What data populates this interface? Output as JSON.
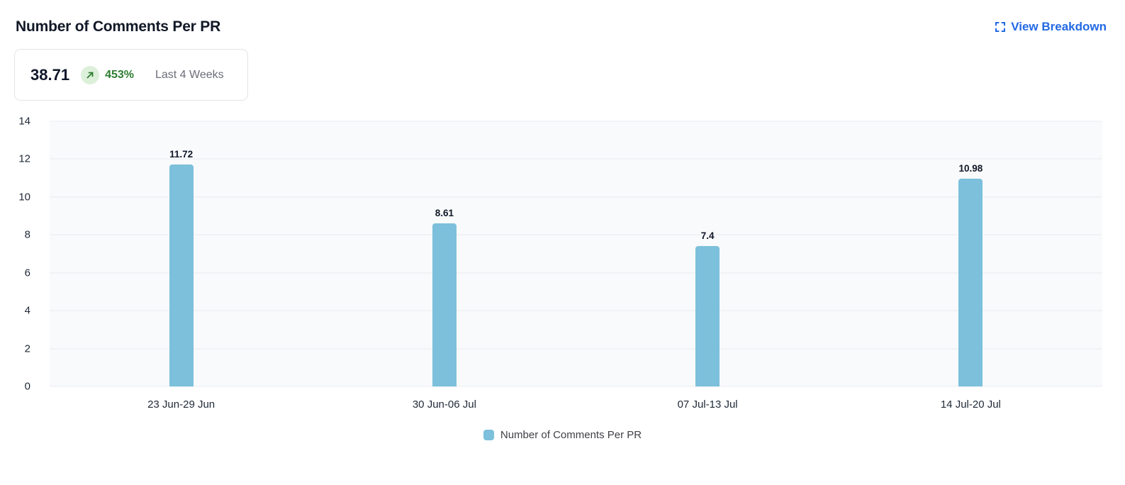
{
  "header": {
    "title": "Number of Comments Per PR",
    "view_breakdown_label": "View Breakdown",
    "view_breakdown_icon": "expand-icon"
  },
  "summary": {
    "value": "38.71",
    "trend_icon": "arrow-up-right-icon",
    "change": "453%",
    "period": "Last 4 Weeks"
  },
  "chart_data": {
    "type": "bar",
    "title": "Number of Comments Per PR",
    "categories": [
      "23 Jun-29 Jun",
      "30 Jun-06 Jul",
      "07 Jul-13 Jul",
      "14 Jul-20 Jul"
    ],
    "values": [
      11.72,
      8.61,
      7.4,
      10.98
    ],
    "value_labels": [
      "11.72",
      "8.61",
      "7.4",
      "10.98"
    ],
    "xlabel": "",
    "ylabel": "",
    "ylim": [
      0,
      14
    ],
    "yticks": [
      0,
      2,
      4,
      6,
      8,
      10,
      12,
      14
    ],
    "grid": true,
    "legend": {
      "position": "bottom",
      "entries": [
        "Number of Comments Per PR"
      ]
    },
    "bar_color": "#7cc0db"
  },
  "colors": {
    "accent_blue": "#2269e3",
    "bar": "#7cc0db",
    "trend_green": "#2e7d32",
    "trend_badge_bg": "#ddf0da",
    "plot_background": "#f8fafc",
    "gridline": "#e8ecf1"
  }
}
